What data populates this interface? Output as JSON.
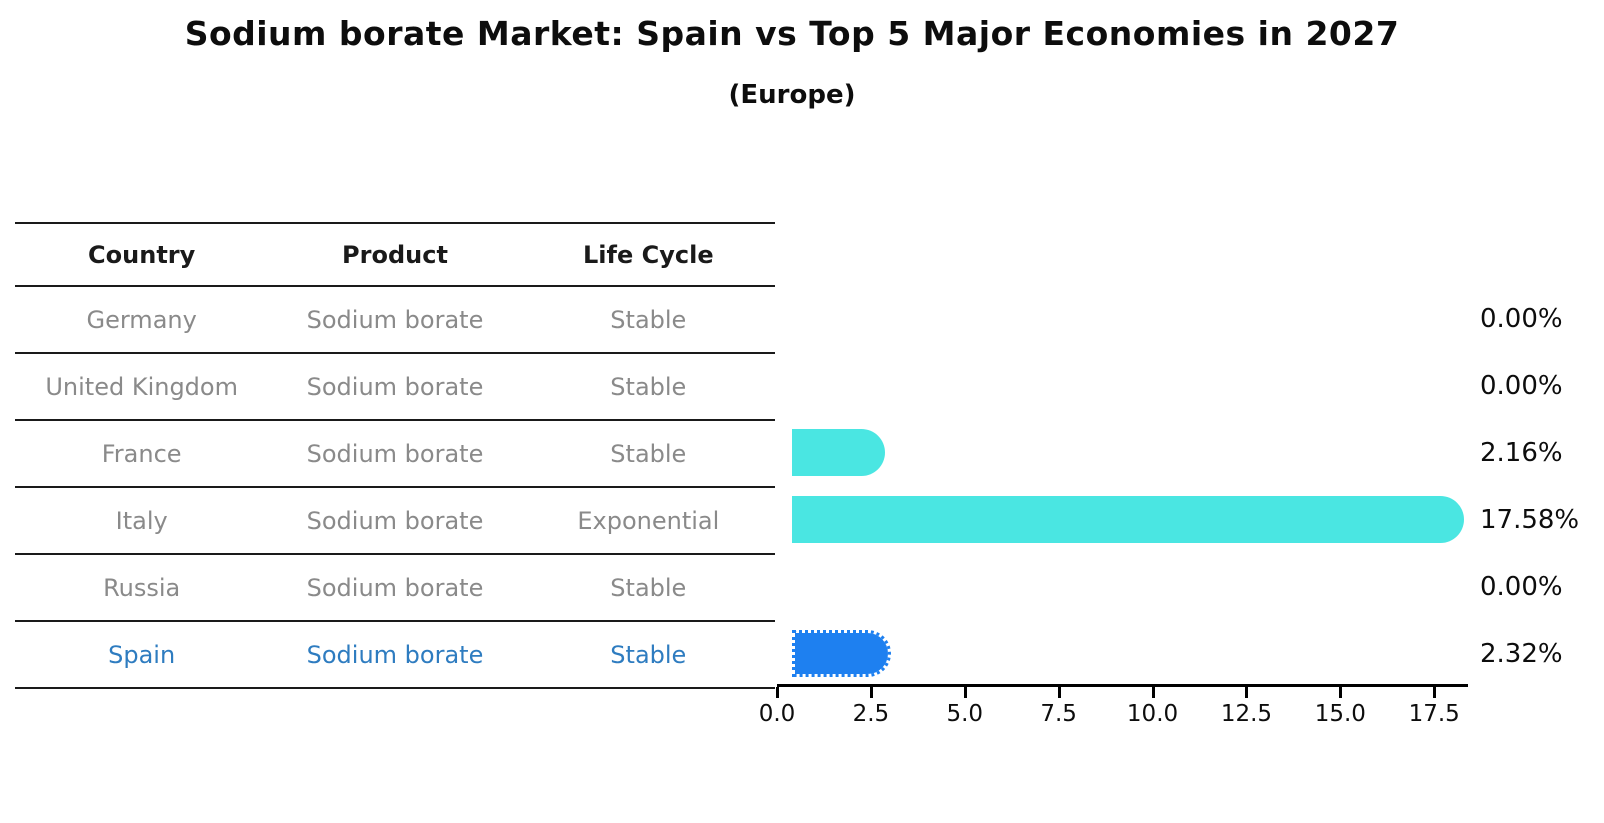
{
  "title": "Sodium borate Market: Spain vs Top 5 Major Economies in 2027",
  "subtitle": "(Europe)",
  "table": {
    "headers": [
      "Country",
      "Product",
      "Life Cycle"
    ],
    "rows": [
      {
        "country": "Germany",
        "product": "Sodium borate",
        "life_cycle": "Stable"
      },
      {
        "country": "United Kingdom",
        "product": "Sodium borate",
        "life_cycle": "Stable"
      },
      {
        "country": "France",
        "product": "Sodium borate",
        "life_cycle": "Stable"
      },
      {
        "country": "Italy",
        "product": "Sodium borate",
        "life_cycle": "Exponential"
      },
      {
        "country": "Russia",
        "product": "Sodium borate",
        "life_cycle": "Stable"
      },
      {
        "country": "Spain",
        "product": "Sodium borate",
        "life_cycle": "Stable"
      }
    ],
    "highlighted_country": "Spain"
  },
  "chart_data": {
    "type": "bar",
    "orientation": "horizontal",
    "title": "Sodium borate Market: Spain vs Top 5 Major Economies in 2027",
    "subtitle": "(Europe)",
    "categories": [
      "Germany",
      "United Kingdom",
      "France",
      "Italy",
      "Russia",
      "Spain"
    ],
    "values": [
      0.0,
      0.0,
      2.16,
      17.58,
      0.0,
      2.32
    ],
    "value_labels": [
      "0.00%",
      "0.00%",
      "2.16%",
      "17.58%",
      "0.00%",
      "2.32%"
    ],
    "x_ticks": [
      0.0,
      2.5,
      5.0,
      7.5,
      10.0,
      12.5,
      15.0,
      17.5
    ],
    "x_tick_labels": [
      "0.0",
      "2.5",
      "5.0",
      "7.5",
      "10.0",
      "12.5",
      "15.0",
      "17.5"
    ],
    "xlim": [
      0,
      18.4
    ],
    "highlight_index": 5,
    "grid": false,
    "legend": "none"
  },
  "colors": {
    "bar_default": "#4AE6E2",
    "bar_highlight": "#1E80F0",
    "highlight_text": "#2E7CC0",
    "table_text": "#8A8A8A",
    "header_text": "#1A1A1A",
    "axis": "#000000"
  }
}
